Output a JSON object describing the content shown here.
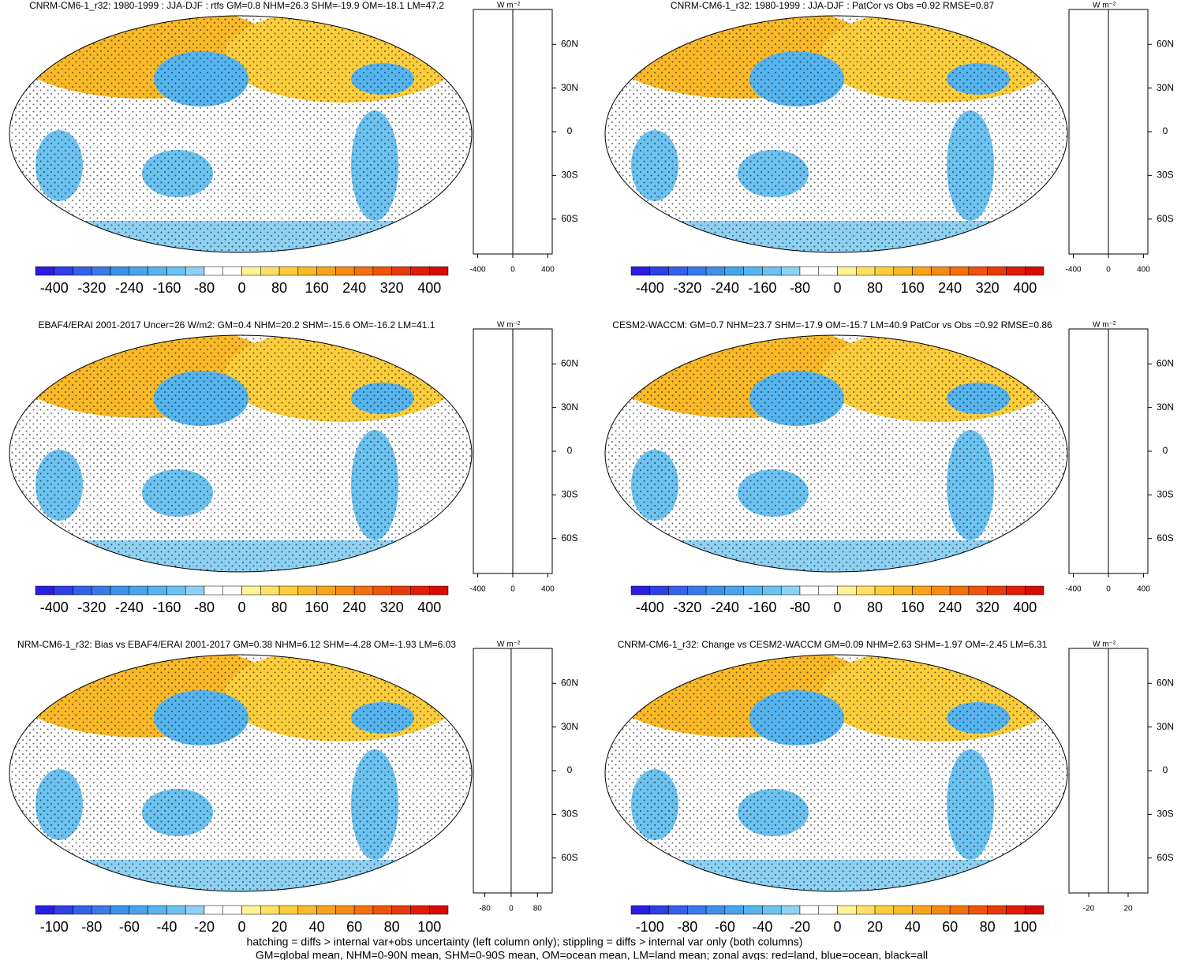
{
  "panels": [
    {
      "title": "CNRM-CM6-1_r32: 1980-1999 : JJA-DJF : rtfs GM=0.8 NHM=26.3 SHM=-19.9 OM=-18.1 LM=47.2",
      "colorbar": {
        "lim": [
          -440,
          440
        ],
        "ticks": [
          -400,
          -320,
          -240,
          -160,
          -80,
          0,
          80,
          160,
          240,
          320,
          400
        ]
      },
      "zonal": {
        "unit": "W m⁻²",
        "xlim": [
          -450,
          450
        ],
        "xticks": [
          -400,
          0,
          400
        ],
        "ylim": [
          -84,
          84
        ],
        "yticks": [
          {
            "value": 60,
            "label": "60N"
          },
          {
            "value": 30,
            "label": "30N"
          },
          0,
          {
            "value": -30,
            "label": "30S"
          },
          {
            "value": -60,
            "label": "60S"
          }
        ]
      }
    },
    {
      "title": "CNRM-CM6-1_r32: 1980-1999 : JJA-DJF : PatCor vs Obs =0.92 RMSE=0.87",
      "colorbar": {
        "lim": [
          -440,
          440
        ],
        "ticks": [
          -400,
          -320,
          -240,
          -160,
          -80,
          0,
          80,
          160,
          240,
          320,
          400
        ]
      },
      "zonal": {
        "unit": "W m⁻²",
        "xlim": [
          -450,
          450
        ],
        "xticks": [
          -400,
          0,
          400
        ],
        "ylim": [
          -84,
          84
        ],
        "yticks": [
          {
            "value": 60,
            "label": "60N"
          },
          {
            "value": 30,
            "label": "30N"
          },
          0,
          {
            "value": -30,
            "label": "30S"
          },
          {
            "value": -60,
            "label": "60S"
          }
        ]
      }
    },
    {
      "title": "EBAF4/ERAI 2001-2017 Uncer=26 W/m2: GM=0.4 NHM=20.2 SHM=-15.6 OM=-16.2 LM=41.1",
      "colorbar": {
        "lim": [
          -440,
          440
        ],
        "ticks": [
          -400,
          -320,
          -240,
          -160,
          -80,
          0,
          80,
          160,
          240,
          320,
          400
        ]
      },
      "zonal": {
        "unit": "W m⁻²",
        "xlim": [
          -450,
          450
        ],
        "xticks": [
          -400,
          0,
          400
        ],
        "ylim": [
          -84,
          84
        ],
        "yticks": [
          {
            "value": 60,
            "label": "60N"
          },
          {
            "value": 30,
            "label": "30N"
          },
          0,
          {
            "value": -30,
            "label": "30S"
          },
          {
            "value": -60,
            "label": "60S"
          }
        ]
      }
    },
    {
      "title": "CESM2-WACCM: GM=0.7 NHM=23.7 SHM=-17.9 OM=-15.7 LM=40.9 PatCor vs Obs =0.92 RMSE=0.86",
      "colorbar": {
        "lim": [
          -440,
          440
        ],
        "ticks": [
          -400,
          -320,
          -240,
          -160,
          -80,
          0,
          80,
          160,
          240,
          320,
          400
        ]
      },
      "zonal": {
        "unit": "W m⁻²",
        "xlim": [
          -450,
          450
        ],
        "xticks": [
          -400,
          0,
          400
        ],
        "ylim": [
          -84,
          84
        ],
        "yticks": [
          {
            "value": 60,
            "label": "60N"
          },
          {
            "value": 30,
            "label": "30N"
          },
          0,
          {
            "value": -30,
            "label": "30S"
          },
          {
            "value": -60,
            "label": "60S"
          }
        ]
      }
    },
    {
      "title": "NRM-CM6-1_r32: Bias vs EBAF4/ERAI 2001-2017 GM=0.38 NHM=6.12 SHM=-4.28 OM=-1.93 LM=6.03",
      "colorbar": {
        "lim": [
          -110,
          110
        ],
        "ticks": [
          -100,
          -80,
          -60,
          -40,
          -20,
          0,
          20,
          40,
          60,
          80,
          100
        ]
      },
      "zonal": {
        "unit": "W m⁻²",
        "xlim": [
          -115,
          125
        ],
        "xticks": [
          -80,
          0,
          80
        ],
        "ylim": [
          -84,
          84
        ],
        "yticks": [
          {
            "value": 60,
            "label": "60N"
          },
          {
            "value": 30,
            "label": "30N"
          },
          0,
          {
            "value": -30,
            "label": "30S"
          },
          {
            "value": -60,
            "label": "60S"
          }
        ]
      }
    },
    {
      "title": "CNRM-CM6-1_r32: Change vs CESM2-WACCM GM=0.09 NHM=2.63 SHM=-1.97 OM=-2.45 LM=6.31",
      "colorbar": {
        "lim": [
          -110,
          110
        ],
        "ticks": [
          -100,
          -80,
          -60,
          -40,
          -20,
          0,
          20,
          40,
          60,
          80,
          100
        ]
      },
      "zonal": {
        "unit": "W m⁻²",
        "xlim": [
          -40,
          40
        ],
        "xticks": [
          -20,
          20
        ],
        "ylim": [
          -84,
          84
        ],
        "yticks": [
          {
            "value": 60,
            "label": "60N"
          },
          {
            "value": 30,
            "label": "30N"
          },
          0,
          {
            "value": -30,
            "label": "30S"
          },
          {
            "value": -60,
            "label": "60S"
          }
        ]
      }
    }
  ],
  "footer": [
    "hatching = diffs > internal var+obs uncertainty (left column only); stippling = diffs > internal var only (both columns)",
    "GM=global mean, NHM=0-90N mean, SHM=0-90S mean, OM=ocean mean, LM=land mean; zonal avgs: red=land, blue=ocean, black=all"
  ]
}
